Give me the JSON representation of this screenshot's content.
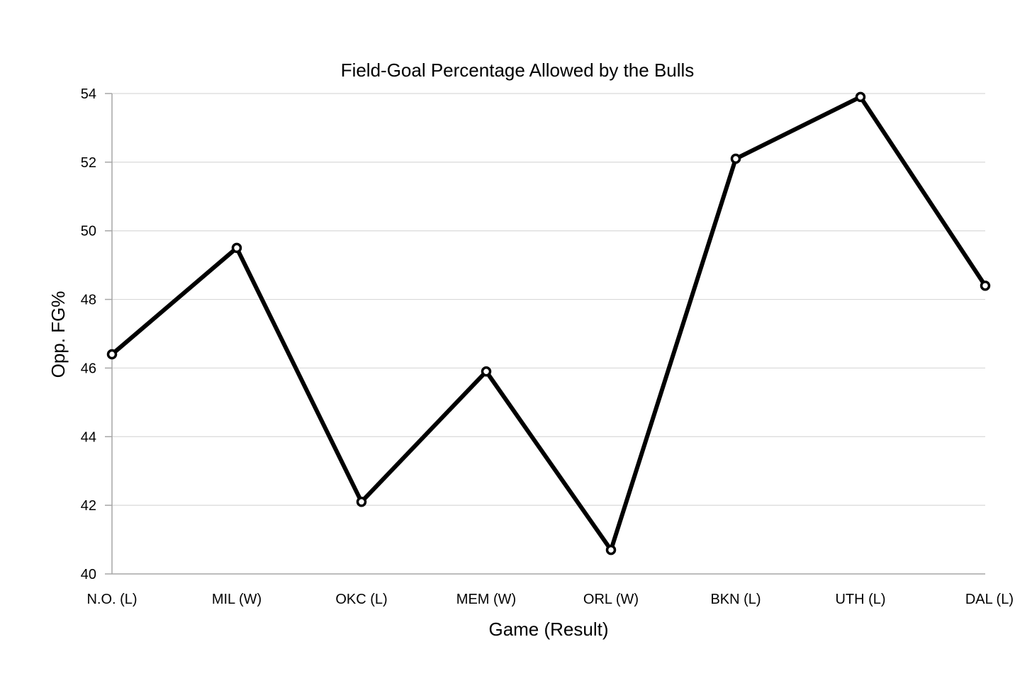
{
  "chart_data": {
    "type": "line",
    "title": "Field-Goal Percentage Allowed by the Bulls",
    "xlabel": "Game (Result)",
    "ylabel": "Opp. FG%",
    "categories": [
      "N.O. (L)",
      "MIL (W)",
      "OKC (L)",
      "MEM (W)",
      "ORL (W)",
      "BKN (L)",
      "UTH (L)",
      "DAL (L)"
    ],
    "series": [
      {
        "values": [
          46.4,
          49.5,
          42.1,
          45.9,
          40.7,
          52.1,
          53.9,
          48.4
        ]
      }
    ],
    "ylim": [
      40,
      54
    ],
    "yticks": [
      "40",
      "42",
      "44",
      "46",
      "48",
      "50",
      "52",
      "54"
    ],
    "grid": true,
    "legend": "none",
    "colors": {
      "line": "#000000",
      "marker_fill": "#ffffff",
      "grid": "#d9d9d9",
      "axis": "#a6a6a6"
    }
  }
}
